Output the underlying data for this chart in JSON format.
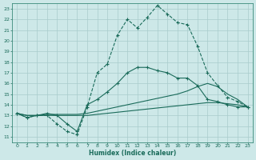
{
  "xlabel": "Humidex (Indice chaleur)",
  "bg_color": "#cde8e8",
  "grid_color": "#b8d4d4",
  "line_color": "#1a6b5a",
  "xlim": [
    -0.5,
    23.5
  ],
  "ylim": [
    10.5,
    23.5
  ],
  "xticks": [
    0,
    1,
    2,
    3,
    4,
    5,
    6,
    7,
    8,
    9,
    10,
    11,
    12,
    13,
    14,
    15,
    16,
    17,
    18,
    19,
    20,
    21,
    22,
    23
  ],
  "yticks": [
    11,
    12,
    13,
    14,
    15,
    16,
    17,
    18,
    19,
    20,
    21,
    22,
    23
  ],
  "line1_x": [
    0,
    1,
    2,
    3,
    4,
    5,
    6,
    7,
    8,
    9,
    10,
    11,
    12,
    13,
    14,
    15,
    16,
    17,
    18,
    19,
    20,
    21,
    22,
    23
  ],
  "line1_y": [
    13.2,
    12.8,
    13.0,
    13.0,
    12.2,
    11.5,
    11.2,
    13.8,
    17.0,
    17.8,
    20.5,
    22.0,
    21.2,
    22.2,
    23.3,
    22.5,
    21.7,
    21.5,
    19.5,
    17.0,
    15.8,
    14.7,
    14.3,
    13.8
  ],
  "line2_x": [
    0,
    1,
    2,
    3,
    4,
    5,
    6,
    7,
    8,
    9,
    10,
    11,
    12,
    13,
    14,
    15,
    16,
    17,
    18,
    19,
    20,
    21,
    22,
    23
  ],
  "line2_y": [
    13.2,
    12.8,
    13.0,
    13.2,
    13.0,
    12.2,
    11.5,
    14.0,
    14.5,
    15.2,
    16.0,
    17.0,
    17.5,
    17.5,
    17.2,
    17.0,
    16.5,
    16.5,
    15.8,
    14.5,
    14.3,
    14.0,
    13.8,
    13.8
  ],
  "line3_x": [
    0,
    1,
    2,
    3,
    4,
    5,
    6,
    7,
    8,
    9,
    10,
    11,
    12,
    13,
    14,
    15,
    16,
    17,
    18,
    19,
    20,
    21,
    22,
    23
  ],
  "line3_y": [
    13.2,
    13.0,
    13.0,
    13.1,
    13.1,
    13.1,
    13.1,
    13.2,
    13.4,
    13.6,
    13.8,
    14.0,
    14.2,
    14.4,
    14.6,
    14.8,
    15.0,
    15.3,
    15.7,
    16.0,
    15.7,
    15.0,
    14.5,
    13.8
  ],
  "line4_x": [
    0,
    1,
    2,
    3,
    4,
    5,
    6,
    7,
    8,
    9,
    10,
    11,
    12,
    13,
    14,
    15,
    16,
    17,
    18,
    19,
    20,
    21,
    22,
    23
  ],
  "line4_y": [
    13.2,
    13.0,
    13.0,
    13.0,
    13.0,
    13.0,
    13.0,
    13.0,
    13.1,
    13.2,
    13.3,
    13.4,
    13.5,
    13.6,
    13.7,
    13.8,
    13.9,
    14.0,
    14.1,
    14.2,
    14.2,
    14.1,
    14.0,
    13.8
  ]
}
